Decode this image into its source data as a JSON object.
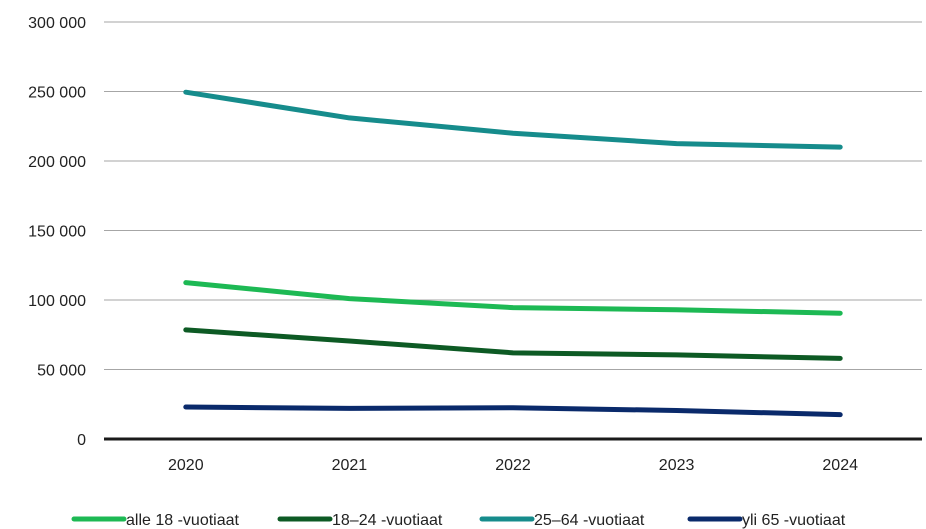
{
  "chart_data": {
    "type": "line",
    "title": "",
    "xlabel": "",
    "ylabel": "",
    "x": [
      "2020",
      "2021",
      "2022",
      "2023",
      "2024"
    ],
    "ylim": [
      0,
      300000
    ],
    "yticks": [
      {
        "value": 0,
        "label": "0"
      },
      {
        "value": 50000,
        "label": "50 000"
      },
      {
        "value": 100000,
        "label": "100 000"
      },
      {
        "value": 150000,
        "label": "150 000"
      },
      {
        "value": 200000,
        "label": "200 000"
      },
      {
        "value": 250000,
        "label": "250 000"
      },
      {
        "value": 300000,
        "label": "300 000"
      }
    ],
    "grid": true,
    "legend_position": "bottom",
    "series": [
      {
        "name": "alle 18 -vuotiaat",
        "color": "#1db954",
        "values": [
          112500,
          101000,
          94500,
          93000,
          90500
        ]
      },
      {
        "name": "18–24 -vuotiaat",
        "color": "#0d5a24",
        "values": [
          78500,
          70500,
          62000,
          60500,
          58000
        ]
      },
      {
        "name": "25–64 -vuotiaat",
        "color": "#168c8c",
        "values": [
          249500,
          231000,
          220000,
          212500,
          210000
        ]
      },
      {
        "name": "yli 65 -vuotiaat",
        "color": "#0a2a6b",
        "values": [
          23000,
          22000,
          22500,
          20500,
          17500
        ]
      }
    ]
  }
}
